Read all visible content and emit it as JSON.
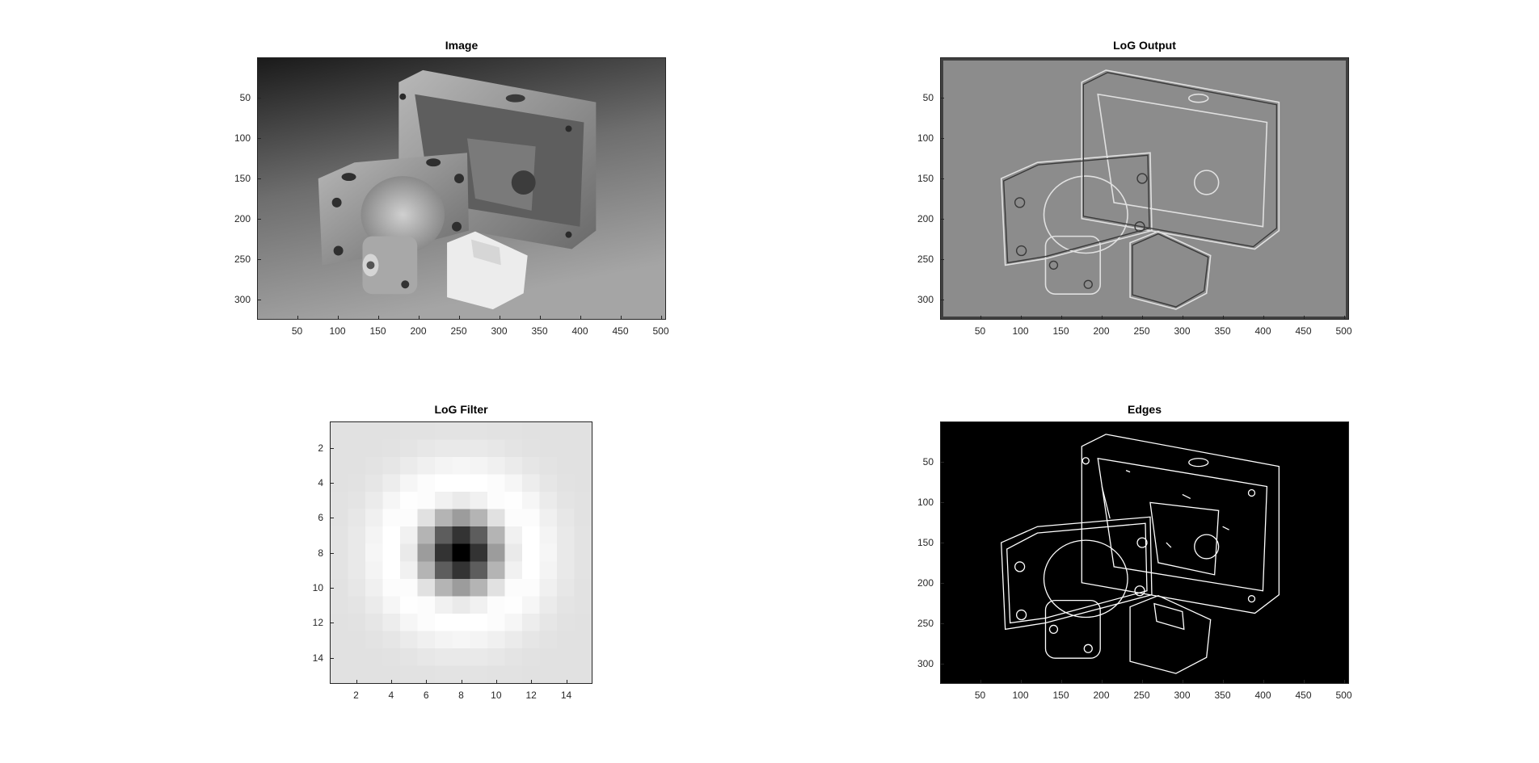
{
  "figure": {
    "panels": [
      {
        "id": "image",
        "title": "Image",
        "x_ticks": [
          "50",
          "100",
          "150",
          "200",
          "250",
          "300",
          "350",
          "400",
          "450",
          "500"
        ],
        "y_ticks": [
          "50",
          "100",
          "150",
          "200",
          "250",
          "300"
        ],
        "content": "grayscale photograph of machined metal parts"
      },
      {
        "id": "log-output",
        "title": "LoG Output",
        "x_ticks": [
          "50",
          "100",
          "150",
          "200",
          "250",
          "300",
          "350",
          "400",
          "450",
          "500"
        ],
        "y_ticks": [
          "50",
          "100",
          "150",
          "200",
          "250",
          "300"
        ],
        "content": "Laplacian-of-Gaussian filtered image"
      },
      {
        "id": "log-filter",
        "title": "LoG Filter",
        "x_ticks": [
          "2",
          "4",
          "6",
          "8",
          "10",
          "12",
          "14"
        ],
        "y_ticks": [
          "2",
          "4",
          "6",
          "8",
          "10",
          "12",
          "14"
        ],
        "content": "15x15 LoG kernel shown as grayscale"
      },
      {
        "id": "edges",
        "title": "Edges",
        "x_ticks": [
          "50",
          "100",
          "150",
          "200",
          "250",
          "300",
          "350",
          "400",
          "450",
          "500"
        ],
        "y_ticks": [
          "50",
          "100",
          "150",
          "200",
          "250",
          "300"
        ],
        "content": "binary edge map, white edges on black"
      }
    ]
  },
  "colors": {
    "axis": "#262626",
    "background": "#ffffff"
  }
}
